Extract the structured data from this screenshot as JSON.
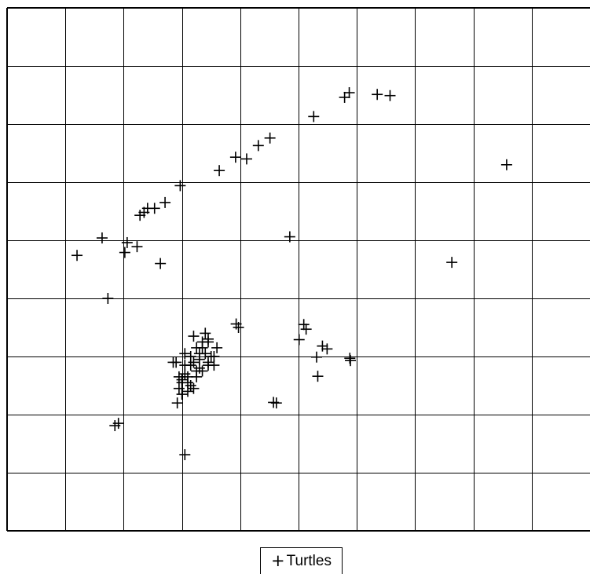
{
  "chart_data": {
    "type": "scatter",
    "title": "",
    "xlabel": "",
    "ylabel": "",
    "grid": true,
    "xlim": [
      0,
      10
    ],
    "ylim": [
      0,
      9
    ],
    "legend": {
      "placement": "bottom-center",
      "entries": [
        "Turtles"
      ]
    },
    "marker": "plus",
    "color": "#000000",
    "series": [
      {
        "name": "Turtles",
        "points": [
          [
            5.79,
            7.46
          ],
          [
            5.87,
            7.54
          ],
          [
            6.35,
            7.51
          ],
          [
            6.57,
            7.49
          ],
          [
            5.26,
            7.13
          ],
          [
            4.51,
            6.76
          ],
          [
            4.31,
            6.63
          ],
          [
            4.11,
            6.4
          ],
          [
            3.92,
            6.43
          ],
          [
            3.64,
            6.2
          ],
          [
            2.97,
            5.94
          ],
          [
            2.71,
            5.65
          ],
          [
            2.53,
            5.55
          ],
          [
            2.41,
            5.55
          ],
          [
            2.35,
            5.48
          ],
          [
            2.28,
            5.43
          ],
          [
            1.63,
            5.04
          ],
          [
            2.06,
            4.96
          ],
          [
            2.23,
            4.89
          ],
          [
            2.02,
            4.79
          ],
          [
            1.2,
            4.74
          ],
          [
            2.63,
            4.6
          ],
          [
            1.73,
            4.0
          ],
          [
            3.93,
            3.56
          ],
          [
            3.97,
            3.5
          ],
          [
            5.09,
            3.55
          ],
          [
            5.13,
            3.47
          ],
          [
            5.01,
            3.29
          ],
          [
            5.41,
            3.18
          ],
          [
            5.49,
            3.13
          ],
          [
            5.31,
            2.99
          ],
          [
            5.88,
            2.97
          ],
          [
            5.89,
            2.93
          ],
          [
            5.33,
            2.66
          ],
          [
            4.57,
            2.21
          ],
          [
            4.62,
            2.2
          ],
          [
            1.85,
            1.81
          ],
          [
            1.91,
            1.85
          ],
          [
            3.05,
            1.31
          ],
          [
            2.92,
            2.2
          ],
          [
            3.05,
            3.05
          ],
          [
            3.2,
            3.35
          ],
          [
            3.35,
            3.25
          ],
          [
            3.45,
            3.25
          ],
          [
            3.3,
            2.95
          ],
          [
            3.4,
            3.05
          ],
          [
            3.25,
            3.15
          ],
          [
            3.5,
            3.0
          ],
          [
            3.45,
            2.9
          ],
          [
            3.3,
            2.8
          ],
          [
            3.15,
            2.85
          ],
          [
            3.05,
            2.7
          ],
          [
            2.95,
            2.65
          ],
          [
            3.0,
            2.6
          ],
          [
            3.1,
            2.55
          ],
          [
            3.2,
            2.45
          ],
          [
            3.1,
            2.4
          ],
          [
            3.0,
            2.35
          ],
          [
            3.2,
            2.9
          ],
          [
            3.35,
            3.15
          ],
          [
            3.55,
            2.85
          ],
          [
            3.25,
            2.75
          ],
          [
            2.9,
            2.9
          ],
          [
            3.15,
            3.0
          ],
          [
            3.4,
            3.4
          ],
          [
            3.0,
            2.55
          ],
          [
            3.1,
            2.65
          ],
          [
            3.3,
            3.05
          ],
          [
            3.45,
            2.85
          ],
          [
            3.25,
            2.65
          ],
          [
            2.85,
            2.9
          ],
          [
            3.55,
            3.0
          ],
          [
            3.35,
            2.75
          ],
          [
            3.15,
            2.5
          ],
          [
            2.95,
            2.45
          ],
          [
            3.45,
            3.3
          ],
          [
            3.05,
            2.85
          ],
          [
            3.6,
            3.15
          ],
          [
            8.57,
            6.3
          ],
          [
            7.63,
            4.62
          ],
          [
            4.85,
            5.06
          ]
        ]
      }
    ]
  }
}
